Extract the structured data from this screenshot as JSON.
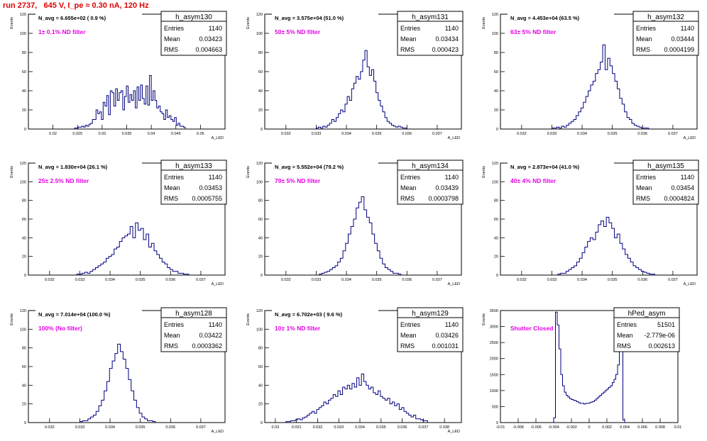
{
  "header": {
    "title": "run 2737,   645 V, I_pe ≈ 0.30 nA, 120 Hz"
  },
  "chart_data": [
    {
      "type": "bar",
      "name": "h_asym130",
      "title": "N_avg = 6.655e+02 ( 0.9 %)",
      "annotation": "1± 0.1% ND filter",
      "stats": {
        "entries": "1140",
        "mean": "0.03423",
        "rms": "0.004663"
      },
      "xlabel": "A_LED",
      "ylabel": "Events",
      "xlim": [
        0.015,
        0.055
      ],
      "ylim": [
        0,
        120
      ],
      "xticks": [
        0.02,
        0.025,
        0.03,
        0.035,
        0.04,
        0.045,
        0.05
      ],
      "xticklabels": [
        "0.02",
        "0.025",
        "0.03",
        "0.035",
        "0.04",
        "0.045",
        "0.05"
      ],
      "yticks": [
        0,
        20,
        40,
        60,
        80,
        100,
        120
      ],
      "yticklabels": [
        "0",
        "20",
        "40",
        "60",
        "80",
        "100",
        "120"
      ],
      "bin_edges": [
        0.0244,
        0.0469
      ],
      "values": [
        1,
        1,
        2,
        2,
        3,
        2,
        4,
        3,
        5,
        6,
        10,
        10,
        20,
        16,
        18,
        10,
        28,
        24,
        35,
        15,
        40,
        38,
        24,
        42,
        30,
        38,
        40,
        20,
        34,
        45,
        28,
        36,
        30,
        40,
        22,
        44,
        30,
        46,
        32,
        26,
        45,
        25,
        56,
        30,
        40,
        30,
        22,
        24,
        18,
        16,
        10,
        20,
        12,
        14,
        10,
        8,
        12,
        4,
        6,
        3,
        3,
        2
      ]
    },
    {
      "type": "bar",
      "name": "h_asym131",
      "title": "N_avg = 3.575e+04 (51.0 %)",
      "annotation": "50± 5% ND filter",
      "stats": {
        "entries": "1140",
        "mean": "0.03434",
        "rms": "0.000423"
      },
      "xlabel": "A_LED",
      "ylabel": "Events",
      "xlim": [
        0.0313,
        0.0378
      ],
      "ylim": [
        0,
        120
      ],
      "xticks": [
        0.032,
        0.033,
        0.034,
        0.035,
        0.036,
        0.037
      ],
      "xticklabels": [
        "0.032",
        "0.033",
        "0.034",
        "0.035",
        "0.036",
        "0.037"
      ],
      "yticks": [
        0,
        20,
        40,
        60,
        80,
        100,
        120
      ],
      "yticklabels": [
        "0",
        "20",
        "40",
        "60",
        "80",
        "100",
        "120"
      ],
      "bin_edges": [
        0.033,
        0.036
      ],
      "values": [
        1,
        2,
        1,
        3,
        2,
        4,
        6,
        10,
        8,
        12,
        16,
        20,
        18,
        26,
        34,
        30,
        42,
        48,
        55,
        52,
        60,
        72,
        82,
        65,
        56,
        62,
        50,
        38,
        30,
        24,
        18,
        12,
        8,
        6,
        4,
        3,
        2,
        3,
        2,
        1,
        1
      ]
    },
    {
      "type": "bar",
      "name": "h_asym132",
      "title": "N_avg = 4.453e+04 (63.5 %)",
      "annotation": "63± 5% ND filter",
      "stats": {
        "entries": "1140",
        "mean": "0.03444",
        "rms": "0.0004199"
      },
      "xlabel": "A_LED",
      "ylabel": "Events",
      "xlim": [
        0.0313,
        0.0378
      ],
      "ylim": [
        0,
        120
      ],
      "xticks": [
        0.032,
        0.033,
        0.034,
        0.035,
        0.036,
        0.037
      ],
      "xticklabels": [
        "0.032",
        "0.033",
        "0.034",
        "0.035",
        "0.036",
        "0.037"
      ],
      "yticks": [
        0,
        20,
        40,
        60,
        80,
        100,
        120
      ],
      "yticklabels": [
        "0",
        "20",
        "40",
        "60",
        "80",
        "100",
        "120"
      ],
      "bin_edges": [
        0.033,
        0.0362
      ],
      "values": [
        1,
        1,
        2,
        1,
        3,
        2,
        4,
        6,
        8,
        10,
        14,
        18,
        22,
        28,
        34,
        40,
        46,
        50,
        58,
        62,
        70,
        88,
        62,
        74,
        66,
        58,
        50,
        42,
        32,
        26,
        18,
        12,
        10,
        6,
        4,
        3,
        2,
        1,
        1,
        1
      ]
    },
    {
      "type": "bar",
      "name": "h_asym133",
      "title": "N_avg = 1.830e+04 (26.1 %)",
      "annotation": "25± 2.5% ND filter",
      "stats": {
        "entries": "1140",
        "mean": "0.03453",
        "rms": "0.0005755"
      },
      "xlabel": "A_LED",
      "ylabel": "Events",
      "xlim": [
        0.0313,
        0.0378
      ],
      "ylim": [
        0,
        120
      ],
      "xticks": [
        0.032,
        0.033,
        0.034,
        0.035,
        0.036,
        0.037
      ],
      "xticklabels": [
        "0.032",
        "0.033",
        "0.034",
        "0.035",
        "0.036",
        "0.037"
      ],
      "yticks": [
        0,
        20,
        40,
        60,
        80,
        100,
        120
      ],
      "yticklabels": [
        "0",
        "20",
        "40",
        "60",
        "80",
        "100",
        "120"
      ],
      "bin_edges": [
        0.0329,
        0.0366
      ],
      "values": [
        1,
        1,
        2,
        3,
        2,
        4,
        6,
        8,
        10,
        12,
        14,
        18,
        20,
        22,
        28,
        30,
        36,
        40,
        42,
        44,
        52,
        40,
        56,
        48,
        50,
        38,
        44,
        30,
        34,
        26,
        22,
        18,
        14,
        12,
        8,
        6,
        4,
        4,
        2,
        2,
        1,
        1
      ]
    },
    {
      "type": "bar",
      "name": "h_asym134",
      "title": "N_avg = 5.552e+04 (79.2 %)",
      "annotation": "79± 5% ND filter",
      "stats": {
        "entries": "1140",
        "mean": "0.03439",
        "rms": "0.0003798"
      },
      "xlabel": "A_LED",
      "ylabel": "Events",
      "xlim": [
        0.0313,
        0.0378
      ],
      "ylim": [
        0,
        120
      ],
      "xticks": [
        0.032,
        0.033,
        0.034,
        0.035,
        0.036,
        0.037
      ],
      "xticklabels": [
        "0.032",
        "0.033",
        "0.034",
        "0.035",
        "0.036",
        "0.037"
      ],
      "yticks": [
        0,
        20,
        40,
        60,
        80,
        100,
        120
      ],
      "yticklabels": [
        "0",
        "20",
        "40",
        "60",
        "80",
        "100",
        "120"
      ],
      "bin_edges": [
        0.0331,
        0.0358
      ],
      "values": [
        1,
        2,
        3,
        4,
        6,
        8,
        10,
        14,
        18,
        26,
        34,
        44,
        52,
        60,
        72,
        78,
        84,
        70,
        62,
        56,
        44,
        34,
        26,
        18,
        12,
        8,
        6,
        4,
        2,
        2,
        1
      ]
    },
    {
      "type": "bar",
      "name": "h_asym135",
      "title": "N_avg = 2.873e+04 (41.0 %)",
      "annotation": "40± 4% ND filter",
      "stats": {
        "entries": "1140",
        "mean": "0.03454",
        "rms": "0.0004824"
      },
      "xlabel": "A_LED",
      "ylabel": "Events",
      "xlim": [
        0.0313,
        0.0378
      ],
      "ylim": [
        0,
        120
      ],
      "xticks": [
        0.032,
        0.033,
        0.034,
        0.035,
        0.036,
        0.037
      ],
      "xticklabels": [
        "0.032",
        "0.033",
        "0.034",
        "0.035",
        "0.036",
        "0.037"
      ],
      "yticks": [
        0,
        20,
        40,
        60,
        80,
        100,
        120
      ],
      "yticklabels": [
        "0",
        "20",
        "40",
        "60",
        "80",
        "100",
        "120"
      ],
      "bin_edges": [
        0.0332,
        0.0364
      ],
      "values": [
        1,
        2,
        2,
        4,
        6,
        8,
        10,
        14,
        18,
        24,
        30,
        36,
        40,
        38,
        46,
        54,
        58,
        52,
        62,
        56,
        50,
        40,
        44,
        34,
        28,
        22,
        18,
        14,
        10,
        8,
        6,
        4,
        3,
        2,
        1,
        1
      ]
    },
    {
      "type": "bar",
      "name": "h_asym128",
      "title": "N_avg = 7.014e+04 (100.0 %)",
      "annotation": "100% (No filter)",
      "stats": {
        "entries": "1140",
        "mean": "0.03422",
        "rms": "0.0003362"
      },
      "xlabel": "A_LED",
      "ylabel": "Events",
      "xlim": [
        0.0313,
        0.0378
      ],
      "ylim": [
        0,
        120
      ],
      "xticks": [
        0.032,
        0.033,
        0.034,
        0.035,
        0.036,
        0.037
      ],
      "xticklabels": [
        "0.032",
        "0.033",
        "0.034",
        "0.035",
        "0.036",
        "0.037"
      ],
      "yticks": [
        0,
        20,
        40,
        60,
        80,
        100,
        120
      ],
      "yticklabels": [
        "0",
        "20",
        "40",
        "60",
        "80",
        "100",
        "120"
      ],
      "bin_edges": [
        0.033,
        0.0355
      ],
      "values": [
        1,
        2,
        2,
        4,
        6,
        8,
        12,
        18,
        24,
        34,
        44,
        58,
        66,
        74,
        84,
        76,
        68,
        58,
        46,
        34,
        24,
        16,
        10,
        6,
        4,
        2,
        2,
        1
      ]
    },
    {
      "type": "bar",
      "name": "h_asym129",
      "title": "N_avg = 6.702e+03 ( 9.6 %)",
      "annotation": "10± 1% ND filter",
      "stats": {
        "entries": "1140",
        "mean": "0.03426",
        "rms": "0.001031"
      },
      "xlabel": "A_LED",
      "ylabel": "Events",
      "xlim": [
        0.0295,
        0.0388
      ],
      "ylim": [
        0,
        120
      ],
      "xticks": [
        0.03,
        0.031,
        0.032,
        0.033,
        0.034,
        0.035,
        0.036,
        0.037,
        0.038
      ],
      "xticklabels": [
        "0.03",
        "0.031",
        "0.032",
        "0.033",
        "0.034",
        "0.035",
        "0.036",
        "0.037",
        "0.038"
      ],
      "yticks": [
        0,
        20,
        40,
        60,
        80,
        100,
        120
      ],
      "yticklabels": [
        "0",
        "20",
        "40",
        "60",
        "80",
        "100",
        "120"
      ],
      "bin_edges": [
        0.0305,
        0.0372
      ],
      "values": [
        1,
        1,
        2,
        2,
        3,
        4,
        3,
        5,
        6,
        8,
        10,
        12,
        10,
        14,
        16,
        18,
        22,
        20,
        24,
        26,
        30,
        28,
        34,
        30,
        38,
        36,
        40,
        36,
        42,
        38,
        48,
        40,
        52,
        44,
        40,
        36,
        38,
        32,
        30,
        34,
        28,
        26,
        24,
        26,
        20,
        22,
        18,
        20,
        14,
        16,
        12,
        10,
        8,
        6,
        8,
        4,
        4,
        3,
        2,
        2
      ]
    },
    {
      "type": "bar",
      "name": "hPed_asym",
      "title": "",
      "annotation": "Shutter Closed",
      "stats": {
        "entries": "51501",
        "mean": "-2.779e-06",
        "rms": "0.002613"
      },
      "xlabel": "",
      "ylabel": "Events",
      "xlim": [
        -0.01,
        0.01
      ],
      "ylim": [
        0,
        3500
      ],
      "xticks": [
        -0.01,
        -0.008,
        -0.006,
        -0.004,
        -0.002,
        0,
        0.002,
        0.004,
        0.006,
        0.008,
        0.01
      ],
      "xticklabels": [
        "-0.01",
        "-0.008",
        "-0.006",
        "-0.004",
        "-0.002",
        "0",
        "0.002",
        "0.004",
        "0.006",
        "0.008",
        "0.01"
      ],
      "yticks": [
        0,
        500,
        1000,
        1500,
        2000,
        2500,
        3000,
        3500
      ],
      "yticklabels": [
        "0",
        "500",
        "1000",
        "1500",
        "2000",
        "2500",
        "3000",
        "3500"
      ],
      "bin_edges": [
        -0.004,
        0.004
      ],
      "values": [
        150,
        3450,
        3050,
        2300,
        1500,
        1150,
        950,
        850,
        800,
        750,
        720,
        700,
        680,
        650,
        620,
        600,
        600,
        580,
        600,
        600,
        620,
        640,
        660,
        700,
        750,
        800,
        850,
        900,
        950,
        1000,
        1050,
        1100,
        1150,
        1250,
        1350,
        1500,
        1800,
        2400,
        2900,
        80
      ]
    }
  ]
}
